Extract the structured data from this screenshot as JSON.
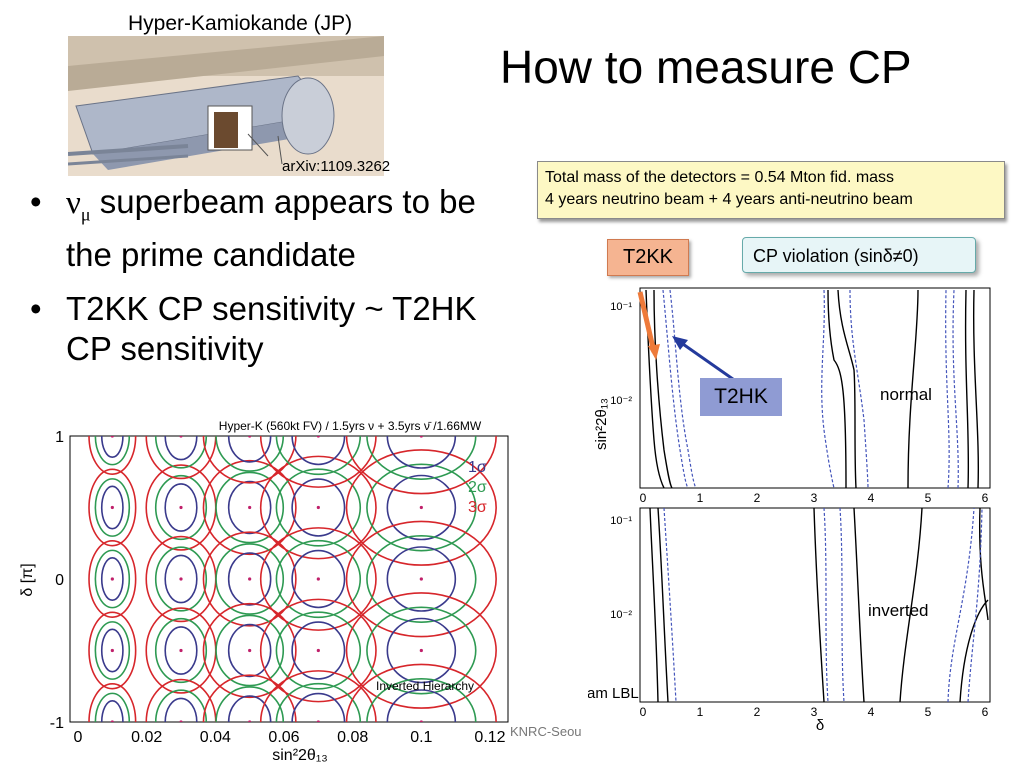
{
  "slide": {
    "title": "How to measure CP",
    "bullets": [
      {
        "symbol": "ν",
        "subscript": "μ",
        "text": " superbeam appears to be the prime candidate"
      },
      {
        "text": "T2KK CP sensitivity ~ T2HK CP sensitivity"
      }
    ],
    "footer": "KNRC-Seou"
  },
  "detector_figure": {
    "label": "Hyper-Kamiokande (JP)",
    "ref": "arXiv:1109.3262"
  },
  "right_figure": {
    "info_lines": [
      "Total mass of the detectors =  0.54 Mton fid. mass",
      "4 years neutrino beam + 4 years anti-neutrino beam"
    ],
    "t2kk_label": "T2KK",
    "cp_label": "CP violation (sinδ≠0)",
    "t2hk_label": "T2HK",
    "panels": [
      "normal",
      "inverted"
    ],
    "ylabel": "sin²2θ₁₃",
    "y_ticks": [
      "10⁻¹",
      "10⁻²"
    ],
    "xlabel": "δ",
    "x_ticks": [
      "0",
      "1",
      "2",
      "3",
      "4",
      "5",
      "6"
    ],
    "cut_text": "ram LBL"
  },
  "chart_data": {
    "type": "scatter",
    "title": "Hyper-K (560kt FV) / 1.5yrs ν + 3.5yrs ν̄ /1.66MW",
    "xlabel": "sin²2θ₁₃",
    "ylabel": "δ [π]",
    "xlim": [
      0,
      0.12
    ],
    "ylim": [
      -1,
      1
    ],
    "x_ticks": [
      "0",
      "0.02",
      "0.04",
      "0.06",
      "0.08",
      "0.1",
      "0.12"
    ],
    "y_ticks": [
      "1",
      "0",
      "-1"
    ],
    "legend": [
      "1σ",
      "2σ",
      "3σ"
    ],
    "legend_colors": [
      "#3a3a8c",
      "#2e9a52",
      "#d7262b"
    ],
    "annotation": "Inverted Hierarchy",
    "points": [
      {
        "x": 0.01,
        "y": 0.5
      },
      {
        "x": 0.03,
        "y": 0.5
      },
      {
        "x": 0.05,
        "y": 0.5
      },
      {
        "x": 0.07,
        "y": 0.5
      },
      {
        "x": 0.1,
        "y": 0.5
      },
      {
        "x": 0.01,
        "y": 0.0
      },
      {
        "x": 0.03,
        "y": 0.0
      },
      {
        "x": 0.05,
        "y": 0.0
      },
      {
        "x": 0.07,
        "y": 0.0
      },
      {
        "x": 0.1,
        "y": 0.0
      },
      {
        "x": 0.01,
        "y": -0.5
      },
      {
        "x": 0.03,
        "y": -0.5
      },
      {
        "x": 0.05,
        "y": -0.5
      },
      {
        "x": 0.07,
        "y": -0.5
      },
      {
        "x": 0.1,
        "y": -0.5
      },
      {
        "x": 0.01,
        "y": 1.0
      },
      {
        "x": 0.03,
        "y": 1.0
      },
      {
        "x": 0.05,
        "y": 1.0
      },
      {
        "x": 0.07,
        "y": 1.0
      },
      {
        "x": 0.1,
        "y": 1.0
      },
      {
        "x": 0.01,
        "y": -1.0
      },
      {
        "x": 0.03,
        "y": -1.0
      },
      {
        "x": 0.05,
        "y": -1.0
      },
      {
        "x": 0.07,
        "y": -1.0
      },
      {
        "x": 0.1,
        "y": -1.0
      }
    ]
  }
}
